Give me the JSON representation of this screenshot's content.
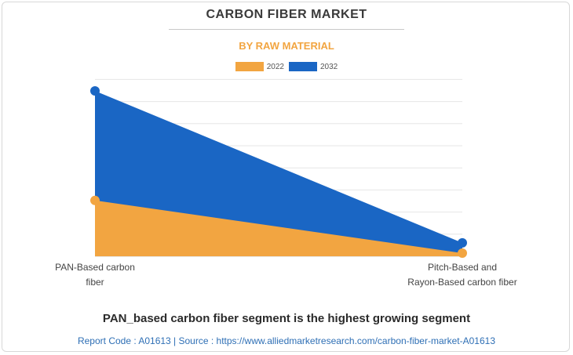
{
  "header": {
    "title": "CARBON FIBER MARKET",
    "subtitle": "BY RAW MATERIAL"
  },
  "chart_data": {
    "type": "area",
    "title": "CARBON FIBER MARKET",
    "subtitle": "BY RAW MATERIAL",
    "categories": [
      [
        "PAN-Based carbon",
        "fiber"
      ],
      [
        "Pitch-Based and",
        "Rayon-Based carbon fiber"
      ]
    ],
    "series": [
      {
        "name": "2022",
        "color": "#f2a541",
        "values": [
          1.25,
          0.07
        ]
      },
      {
        "name": "2032",
        "color": "#1a66c4",
        "values": [
          3.7,
          0.3
        ]
      }
    ],
    "ylim": [
      0,
      3.7
    ],
    "grid": true,
    "legend": "top-center",
    "xlabel": "",
    "ylabel": ""
  },
  "caption": "PAN_based carbon fiber segment is the highest growing segment",
  "footer": "Report Code : A01613  |  Source : https://www.alliedmarketresearch.com/carbon-fiber-market-A01613"
}
